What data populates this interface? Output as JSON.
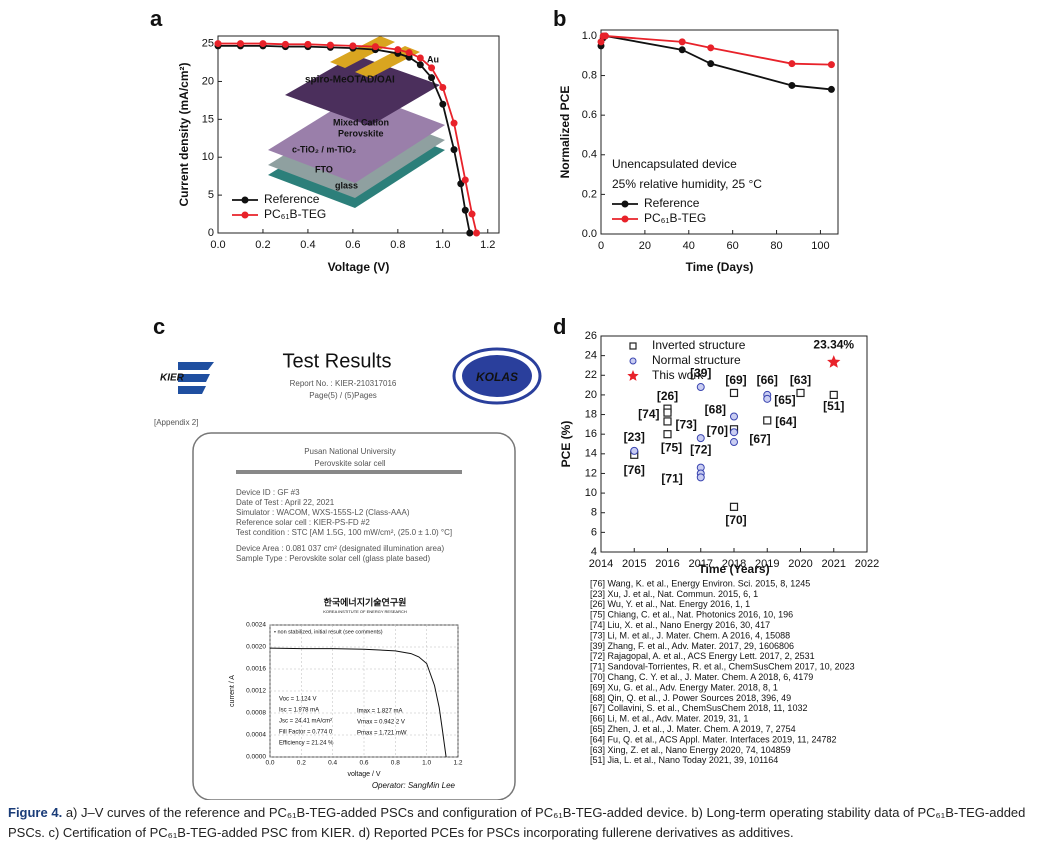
{
  "chart_data": [
    {
      "type": "line",
      "panel": "a",
      "xlabel": "Voltage (V)",
      "ylabel": "Current density (mA/cm²)",
      "xlim": [
        0,
        1.25
      ],
      "ylim": [
        0,
        26
      ],
      "xticks": [
        {
          "value": 0,
          "label": "0.0"
        },
        0.2,
        0.4,
        0.6,
        0.8,
        {
          "value": 1,
          "label": "1.0"
        },
        1.2
      ],
      "yticks": [
        0,
        5,
        10,
        15,
        20,
        25
      ],
      "grid": false,
      "inset_labels": [
        "Au",
        "spiro-MeOTAD/OAI",
        "Mixed Cation",
        "Perovskite",
        "c-TiO₂ / m-TiO₂",
        "FTO",
        "glass"
      ],
      "series": [
        {
          "name": "Reference",
          "color": "#111111",
          "marker": "circle",
          "x": [
            0,
            0.1,
            0.2,
            0.3,
            0.4,
            0.5,
            0.6,
            0.7,
            0.8,
            0.85,
            0.9,
            0.95,
            1.0,
            1.05,
            1.08,
            1.1,
            1.12
          ],
          "values": [
            24.7,
            24.7,
            24.7,
            24.6,
            24.6,
            24.5,
            24.4,
            24.2,
            23.7,
            23.2,
            22.2,
            20.5,
            17,
            11,
            6.5,
            3,
            0
          ]
        },
        {
          "name": "PC₆₁B-TEG",
          "color": "#e8222a",
          "marker": "circle",
          "x": [
            0,
            0.1,
            0.2,
            0.3,
            0.4,
            0.5,
            0.6,
            0.7,
            0.8,
            0.85,
            0.9,
            0.95,
            1.0,
            1.05,
            1.1,
            1.13,
            1.15
          ],
          "values": [
            25.0,
            25.0,
            25.0,
            24.9,
            24.9,
            24.8,
            24.7,
            24.6,
            24.2,
            23.8,
            23.1,
            21.8,
            19.2,
            14.5,
            7,
            2.5,
            0
          ]
        }
      ]
    },
    {
      "type": "line",
      "panel": "b",
      "xlabel": "Time (Days)",
      "ylabel": "Normalized PCE",
      "xlim": [
        0,
        108
      ],
      "ylim": [
        0,
        1.03
      ],
      "xticks": [
        0,
        20,
        40,
        60,
        80,
        100
      ],
      "yticks": [
        {
          "value": 0,
          "label": "0.0"
        },
        0.2,
        0.4,
        0.6,
        0.8,
        {
          "value": 1,
          "label": "1.0"
        }
      ],
      "grid": false,
      "annotations": [
        "Unencapsulated device",
        "25% relative humidity, 25 °C"
      ],
      "series": [
        {
          "name": "Reference",
          "color": "#111111",
          "marker": "circle",
          "x": [
            0,
            1,
            2,
            37,
            50,
            87,
            105
          ],
          "values": [
            0.95,
            0.99,
            1.0,
            0.93,
            0.86,
            0.75,
            0.73
          ]
        },
        {
          "name": "PC₆₁B-TEG",
          "color": "#e8222a",
          "marker": "circle",
          "x": [
            0,
            1,
            2,
            37,
            50,
            87,
            105
          ],
          "values": [
            0.97,
            1.0,
            1.0,
            0.97,
            0.94,
            0.86,
            0.855
          ]
        }
      ]
    },
    {
      "type": "line",
      "xlabel": "voltage / V",
      "ylabel": "current / A",
      "xlim": [
        0,
        1.2
      ],
      "ylim": [
        0,
        0.0024
      ],
      "xticks": [
        {
          "value": 0,
          "label": "0.0"
        },
        0.2,
        0.4,
        0.6,
        0.8,
        {
          "value": 1,
          "label": "1.0"
        },
        1.2
      ],
      "yticks": [
        {
          "value": 0,
          "label": "0.0000"
        },
        {
          "value": 0.0004,
          "label": "0.0004"
        },
        {
          "value": 0.0008,
          "label": "0.0008"
        },
        {
          "value": 0.0012,
          "label": "0.0012"
        },
        {
          "value": 0.0016,
          "label": "0.0016"
        },
        {
          "value": 0.002,
          "label": "0.0020"
        },
        {
          "value": 0.0024,
          "label": "0.0024"
        }
      ],
      "grid": true,
      "series": [
        {
          "color": "#111111",
          "x": [
            0,
            0.2,
            0.4,
            0.6,
            0.8,
            0.9,
            0.95,
            1.0,
            1.05,
            1.08,
            1.1,
            1.124
          ],
          "values": [
            0.00198,
            0.00197,
            0.00197,
            0.00196,
            0.00193,
            0.00188,
            0.00182,
            0.0017,
            0.0013,
            0.0009,
            0.0005,
            0
          ]
        }
      ]
    },
    {
      "type": "scatter",
      "panel": "d",
      "xlabel": "Time (Years)",
      "ylabel": "PCE (%)",
      "xlim": [
        2014,
        2022
      ],
      "ylim": [
        4,
        26
      ],
      "xticks": [
        2014,
        2015,
        2016,
        2017,
        2018,
        2019,
        2020,
        2021,
        2022
      ],
      "yticks": [
        4,
        6,
        8,
        10,
        12,
        14,
        16,
        18,
        20,
        22,
        24,
        26
      ],
      "grid": false,
      "series": [
        {
          "name": "Inverted structure",
          "color": "#222222",
          "marker": "square",
          "x": [
            2015,
            2016,
            2016,
            2016,
            2016,
            2018,
            2018,
            2018,
            2019,
            2020,
            2021
          ],
          "values": [
            13.9,
            18.6,
            18.2,
            17.3,
            16.0,
            8.6,
            20.2,
            16.5,
            17.4,
            20.2,
            20.0
          ],
          "labels": [
            "[76]",
            "[26]",
            "[74]",
            "[73]",
            "[75]",
            "[70]",
            "[69]",
            "[70]",
            "[64]",
            "[63]",
            "[51]"
          ]
        },
        {
          "name": "Normal structure",
          "color": "#3a45b0",
          "marker": "circle",
          "x": [
            2015,
            2017,
            2017,
            2017,
            2017,
            2017,
            2018,
            2018,
            2018,
            2019,
            2019
          ],
          "values": [
            14.3,
            20.8,
            15.6,
            12.6,
            12.0,
            11.6,
            17.8,
            16.2,
            15.2,
            20.0,
            19.6
          ],
          "labels": [
            "[23]",
            "[39]",
            "[72]",
            "[71]",
            null,
            null,
            "[68]",
            null,
            "[67]",
            "[66]",
            "[65]"
          ]
        },
        {
          "name": "This work",
          "color": "#e8222a",
          "marker": "star",
          "x": [
            2021
          ],
          "values": [
            23.34
          ],
          "labels": [
            "23.34%"
          ]
        }
      ],
      "references": [
        "[76] Wang, K. et al., Energy Environ. Sci. 2015, 8, 1245",
        "[23] Xu, J. et al., Nat. Commun. 2015, 6, 1",
        "[26] Wu, Y. et al., Nat. Energy 2016, 1, 1",
        "[75] Chiang, C. et al., Nat. Photonics 2016, 10, 196",
        "[74] Liu, X. et al., Nano Energy 2016, 30, 417",
        "[73] Li, M. et al., J. Mater. Chem. A 2016, 4, 15088",
        "[39] Zhang, F. et al., Adv. Mater. 2017, 29, 1606806",
        "[72] Rajagopal, A. et al., ACS Energy Lett. 2017, 2, 2531",
        "[71] Sandoval-Torrientes, R. et al., ChemSusChem 2017, 10, 2023",
        "[70] Chang, C. Y. et al., J. Mater. Chem. A 2018, 6, 4179",
        "[69] Xu, G. et al., Adv. Energy Mater. 2018, 8, 1",
        "[68] Qin, Q. et al., J. Power Sources 2018, 396, 49",
        "[67] Collavini, S. et al., ChemSusChem 2018, 11, 1032",
        "[66] Li, M. et al., Adv. Mater. 2019, 31, 1",
        "[65] Zhen, J. et al., J. Mater. Chem. A 2019, 7, 2754",
        "[64] Fu, Q. et al., ACS Appl. Mater. Interfaces 2019, 11, 24782",
        "[63] Xing, Z. et al., Nano Energy 2020, 74, 104859",
        "[51] Jia, L. et al., Nano Today 2021, 39, 101164"
      ]
    }
  ],
  "certificate": {
    "panel": "c",
    "logo": "KIER",
    "title": "Test Results",
    "report_no": "Report No. : KIER-210317016",
    "page": "Page(5) / (5)Pages",
    "badge": "KOLAS",
    "appendix": "[Appendix 2]",
    "institution": "Pusan National University",
    "device": "Perovskite solar cell",
    "info": [
      "Device ID : GF #3",
      "Date of Test : April 22, 2021",
      "Simulator : WACOM, WXS-155S-L2 (Class-AAA)",
      "Reference solar cell : KIER-PS-FD #2",
      "Test condition : STC [AM 1.5G, 100 mW/cm², (25.0 ± 1.0) °C]",
      "Device Area : 0.081 037 cm² (designated illumination area)",
      "Sample Type : Perovskite solar cell (glass plate based)"
    ],
    "org_name": "한국에너지기술연구원",
    "org_name_en": "KOREA INSTITUTE OF ENERGY RESEARCH",
    "note": "• non stabilized, initial result (see comments)",
    "params_left": [
      "Voc = 1.124 V",
      "Isc = 1.978 mA",
      "Jsc = 24.41 mA/cm²",
      "Fill Factor = 0.774 0",
      "Efficiency = 21.24 %"
    ],
    "params_right": [
      "Imax = 1.827 mA",
      "Vmax = 0.942 2 V",
      "Pmax = 1.721 mW"
    ],
    "operator": "Operator: SangMin Lee"
  },
  "caption": {
    "label": "Figure 4.",
    "text": "a) J–V curves of the reference and PC₆₁B-TEG-added PSCs and configuration of PC₆₁B-TEG-added device. b) Long-term operating stability data of PC₆₁B-TEG-added PSCs. c) Certification of PC₆₁B-TEG-added PSC from KIER. d) Reported PCEs for PSCs incorporating fullerene derivatives as additives."
  }
}
